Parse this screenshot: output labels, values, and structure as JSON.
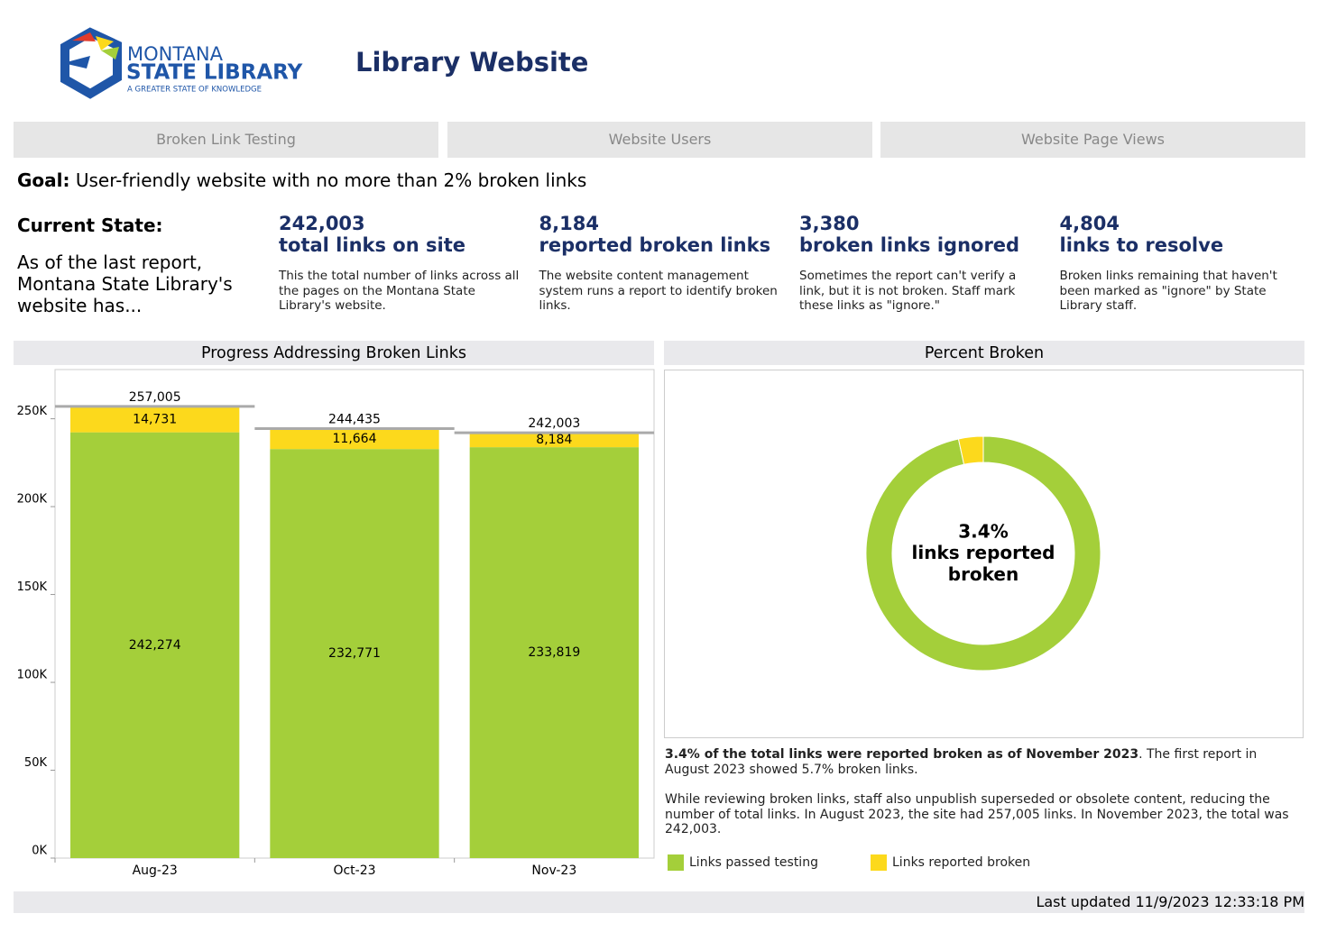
{
  "header": {
    "logo": {
      "line1": "MONTANA",
      "line2": "STATE LIBRARY",
      "tagline": "A GREATER STATE OF KNOWLEDGE"
    },
    "title": "Library Website"
  },
  "tabs": [
    "Broken Link Testing",
    "Website Users",
    "Website Page Views"
  ],
  "goal": {
    "label": "Goal:",
    "text": "User-friendly website with no more than 2% broken links"
  },
  "current_state": {
    "label": "Current State:",
    "text": "As of the last report, Montana State Library's website has..."
  },
  "kpis": [
    {
      "value": "242,003",
      "label": "total links on site",
      "description": "This the total number of links across all the pages on the Montana State Library's website."
    },
    {
      "value": "8,184",
      "label": "reported broken links",
      "description": "The website content management system runs a report to identify broken links."
    },
    {
      "value": "3,380",
      "label": "broken links ignored",
      "description": "Sometimes the report can't verify a link, but it is not broken. Staff mark these links as \"ignore.\""
    },
    {
      "value": "4,804",
      "label": "links to resolve",
      "description": "Broken links remaining that haven't been marked as \"ignore\" by State Library staff."
    }
  ],
  "chart_data": [
    {
      "type": "stacked_bar",
      "title": "Progress Addressing Broken Links",
      "categories": [
        "Aug-23",
        "Oct-23",
        "Nov-23"
      ],
      "series": [
        {
          "name": "Links passed testing",
          "color": "#a4cf3a",
          "values": [
            242274,
            232771,
            233819
          ],
          "value_labels": [
            "242,274",
            "232,771",
            "233,819"
          ]
        },
        {
          "name": "Links reported broken",
          "color": "#fcd91c",
          "values": [
            14731,
            11664,
            8184
          ],
          "value_labels": [
            "14,731",
            "11,664",
            "8,184"
          ]
        }
      ],
      "totals": {
        "values": [
          257005,
          244435,
          242003
        ],
        "value_labels": [
          "257,005",
          "244,435",
          "242,003"
        ],
        "color": "#aaaaaa"
      },
      "ylim": [
        0,
        278000
      ],
      "yticks": [
        {
          "value": 0,
          "label": "0K"
        },
        {
          "value": 50000,
          "label": "50K"
        },
        {
          "value": 100000,
          "label": "100K"
        },
        {
          "value": 150000,
          "label": "150K"
        },
        {
          "value": 200000,
          "label": "200K"
        },
        {
          "value": 250000,
          "label": "250K"
        }
      ]
    },
    {
      "type": "donut",
      "title": "Percent Broken",
      "values": [
        96.6,
        3.4
      ],
      "colors": [
        "#a4cf3a",
        "#fcd91c"
      ],
      "center_label": {
        "value": 3.4,
        "label": "3.4%"
      },
      "center_text": "links reported broken"
    }
  ],
  "notes": {
    "p1_bold": "3.4% of the total links were reported broken as of November 2023",
    "p1_rest": ". The first report in August 2023 showed 5.7% broken links.",
    "p2": "While reviewing broken links, staff also unpublish superseded or obsolete content, reducing the number of total links. In August 2023, the site had 257,005 links. In November 2023, the total was 242,003."
  },
  "footer": "Last updated 11/9/2023 12:33:18 PM"
}
